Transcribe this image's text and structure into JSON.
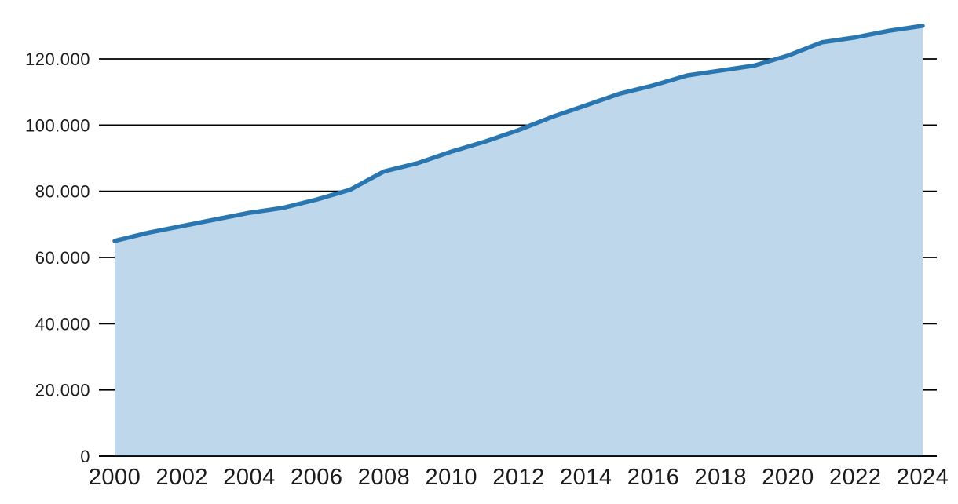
{
  "chart_data": {
    "type": "area",
    "title": "",
    "xlabel": "",
    "ylabel": "",
    "grid": true,
    "legend": false,
    "number_format": "thousands-dot-separator",
    "x": [
      2000,
      2001,
      2002,
      2003,
      2004,
      2005,
      2006,
      2007,
      2008,
      2009,
      2010,
      2011,
      2012,
      2013,
      2014,
      2015,
      2016,
      2017,
      2018,
      2019,
      2020,
      2021,
      2022,
      2023,
      2024
    ],
    "series": [
      {
        "name": "value",
        "values": [
          65000,
          67500,
          69500,
          71500,
          73500,
          75000,
          77500,
          80500,
          86000,
          88500,
          92000,
          95000,
          98500,
          102500,
          106000,
          109500,
          112000,
          115000,
          116500,
          118000,
          121000,
          125000,
          126500,
          128500,
          130000
        ]
      }
    ],
    "xlim": [
      2000,
      2024
    ],
    "ylim": [
      0,
      137000
    ],
    "y_ticks": [
      {
        "value": 0,
        "label": "0"
      },
      {
        "value": 20000,
        "label": "20.000"
      },
      {
        "value": 40000,
        "label": "40.000"
      },
      {
        "value": 60000,
        "label": "60.000"
      },
      {
        "value": 80000,
        "label": "80.000"
      },
      {
        "value": 100000,
        "label": "100.000"
      },
      {
        "value": 120000,
        "label": "120.000"
      }
    ],
    "x_ticks": [
      {
        "value": 2000,
        "label": "2000"
      },
      {
        "value": 2002,
        "label": "2002"
      },
      {
        "value": 2004,
        "label": "2004"
      },
      {
        "value": 2006,
        "label": "2006"
      },
      {
        "value": 2008,
        "label": "2008"
      },
      {
        "value": 2010,
        "label": "2010"
      },
      {
        "value": 2012,
        "label": "2012"
      },
      {
        "value": 2014,
        "label": "2014"
      },
      {
        "value": 2016,
        "label": "2016"
      },
      {
        "value": 2018,
        "label": "2018"
      },
      {
        "value": 2020,
        "label": "2020"
      },
      {
        "value": 2022,
        "label": "2022"
      },
      {
        "value": 2024,
        "label": "2024"
      }
    ],
    "colors": {
      "line": "#2a76b0",
      "area_fill": "#bed7ea",
      "gridline": "#000000",
      "tick_text": "#1b1b1b",
      "background": "#ffffff"
    }
  }
}
